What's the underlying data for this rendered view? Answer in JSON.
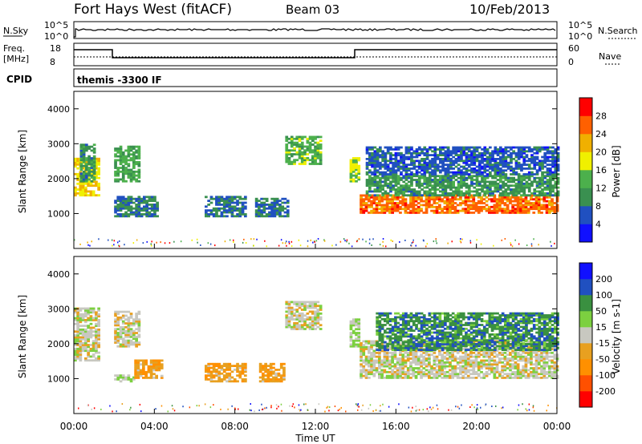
{
  "header": {
    "title": "Fort Hays West (fitACF)",
    "beam": "Beam 03",
    "date": "10/Feb/2013"
  },
  "strip_labels": {
    "nsky": "N.Sky",
    "nsky_top": "10^5",
    "nsky_bottom": "10^0",
    "nsearch": "N.Search",
    "nsearch_top": "10^5",
    "nsearch_bottom": "10^0",
    "freq": "Freq.",
    "freq_unit": "[MHz]",
    "freq_top": "18",
    "freq_bottom": "8",
    "nave": "Nave",
    "nave_top": "60",
    "nave_bottom": "0",
    "cpid": "CPID",
    "cpid_value": "themis -3300 IF"
  },
  "colors": {
    "power": [
      "#1010ff",
      "#2050c0",
      "#3a9050",
      "#4cb04c",
      "#f0f000",
      "#f0b000",
      "#ff6000",
      "#ff0000"
    ],
    "velocity": [
      "#ff0000",
      "#ff5000",
      "#ff9000",
      "#e8a020",
      "#c8c8c0",
      "#7cd040",
      "#3a9040",
      "#2050c0",
      "#1010ff"
    ]
  },
  "chart_data": [
    {
      "type": "heatmap",
      "name": "power-panel",
      "ylabel": "Slant Range [km]",
      "xlabel": "",
      "yticks": [
        "1000",
        "2000",
        "3000",
        "4000"
      ],
      "ylim": [
        0,
        4500
      ],
      "xlim": [
        0,
        24
      ],
      "colorbar_label": "Power [dB]",
      "colorbar_ticks": [
        "4",
        "8",
        "12",
        "16",
        "20",
        "24",
        "28"
      ],
      "clim": [
        0,
        30
      ],
      "regions": [
        {
          "t0": 0.0,
          "t1": 1.2,
          "r0": 1500,
          "r1": 2600,
          "v": 18
        },
        {
          "t0": 0.3,
          "t1": 1.0,
          "r0": 1900,
          "r1": 3000,
          "v": 10
        },
        {
          "t0": 2.0,
          "t1": 3.2,
          "r0": 1900,
          "r1": 2900,
          "v": 12
        },
        {
          "t0": 2.0,
          "t1": 4.2,
          "r0": 900,
          "r1": 1500,
          "v": 8
        },
        {
          "t0": 6.5,
          "t1": 8.5,
          "r0": 900,
          "r1": 1500,
          "v": 7
        },
        {
          "t0": 9.0,
          "t1": 10.6,
          "r0": 900,
          "r1": 1400,
          "v": 7
        },
        {
          "t0": 10.5,
          "t1": 12.2,
          "r0": 2400,
          "r1": 3200,
          "v": 13
        },
        {
          "t0": 13.7,
          "t1": 14.2,
          "r0": 1900,
          "r1": 2600,
          "v": 15
        },
        {
          "t0": 14.2,
          "t1": 24.0,
          "r0": 1000,
          "r1": 1500,
          "v": 24
        },
        {
          "t0": 14.5,
          "t1": 24.0,
          "r0": 1500,
          "r1": 2100,
          "v": 10
        },
        {
          "t0": 14.5,
          "t1": 24.0,
          "r0": 2100,
          "r1": 2900,
          "v": 6
        }
      ]
    },
    {
      "type": "heatmap",
      "name": "velocity-panel",
      "ylabel": "Slant Range [km]",
      "xlabel": "Time UT",
      "yticks": [
        "1000",
        "2000",
        "3000",
        "4000"
      ],
      "ylim": [
        0,
        4500
      ],
      "xlim": [
        0,
        24
      ],
      "xticks": [
        "00:00",
        "04:00",
        "08:00",
        "12:00",
        "16:00",
        "20:00",
        "00:00"
      ],
      "colorbar_label": "Velocity [m s-1]",
      "colorbar_ticks": [
        "200",
        "100",
        "50",
        "15",
        "-15",
        "-50",
        "-100",
        "-200"
      ],
      "clim": [
        -250,
        250
      ],
      "regions": [
        {
          "t0": 0.0,
          "t1": 1.2,
          "r0": 1500,
          "r1": 3000,
          "v": 0
        },
        {
          "t0": 2.0,
          "t1": 3.2,
          "r0": 1900,
          "r1": 2900,
          "v": 0
        },
        {
          "t0": 2.0,
          "t1": 3.0,
          "r0": 900,
          "r1": 1100,
          "v": 30
        },
        {
          "t0": 3.0,
          "t1": 4.3,
          "r0": 1000,
          "r1": 1500,
          "v": -70
        },
        {
          "t0": 6.5,
          "t1": 8.5,
          "r0": 900,
          "r1": 1400,
          "v": -70
        },
        {
          "t0": 9.2,
          "t1": 10.5,
          "r0": 900,
          "r1": 1400,
          "v": -70
        },
        {
          "t0": 10.5,
          "t1": 12.3,
          "r0": 2400,
          "r1": 3200,
          "v": 0
        },
        {
          "t0": 13.7,
          "t1": 14.2,
          "r0": 1900,
          "r1": 2700,
          "v": 30
        },
        {
          "t0": 14.2,
          "t1": 24.0,
          "r0": 1000,
          "r1": 2100,
          "v": 0
        },
        {
          "t0": 15.0,
          "t1": 24.0,
          "r0": 1800,
          "r1": 2900,
          "v": 120
        }
      ]
    }
  ]
}
